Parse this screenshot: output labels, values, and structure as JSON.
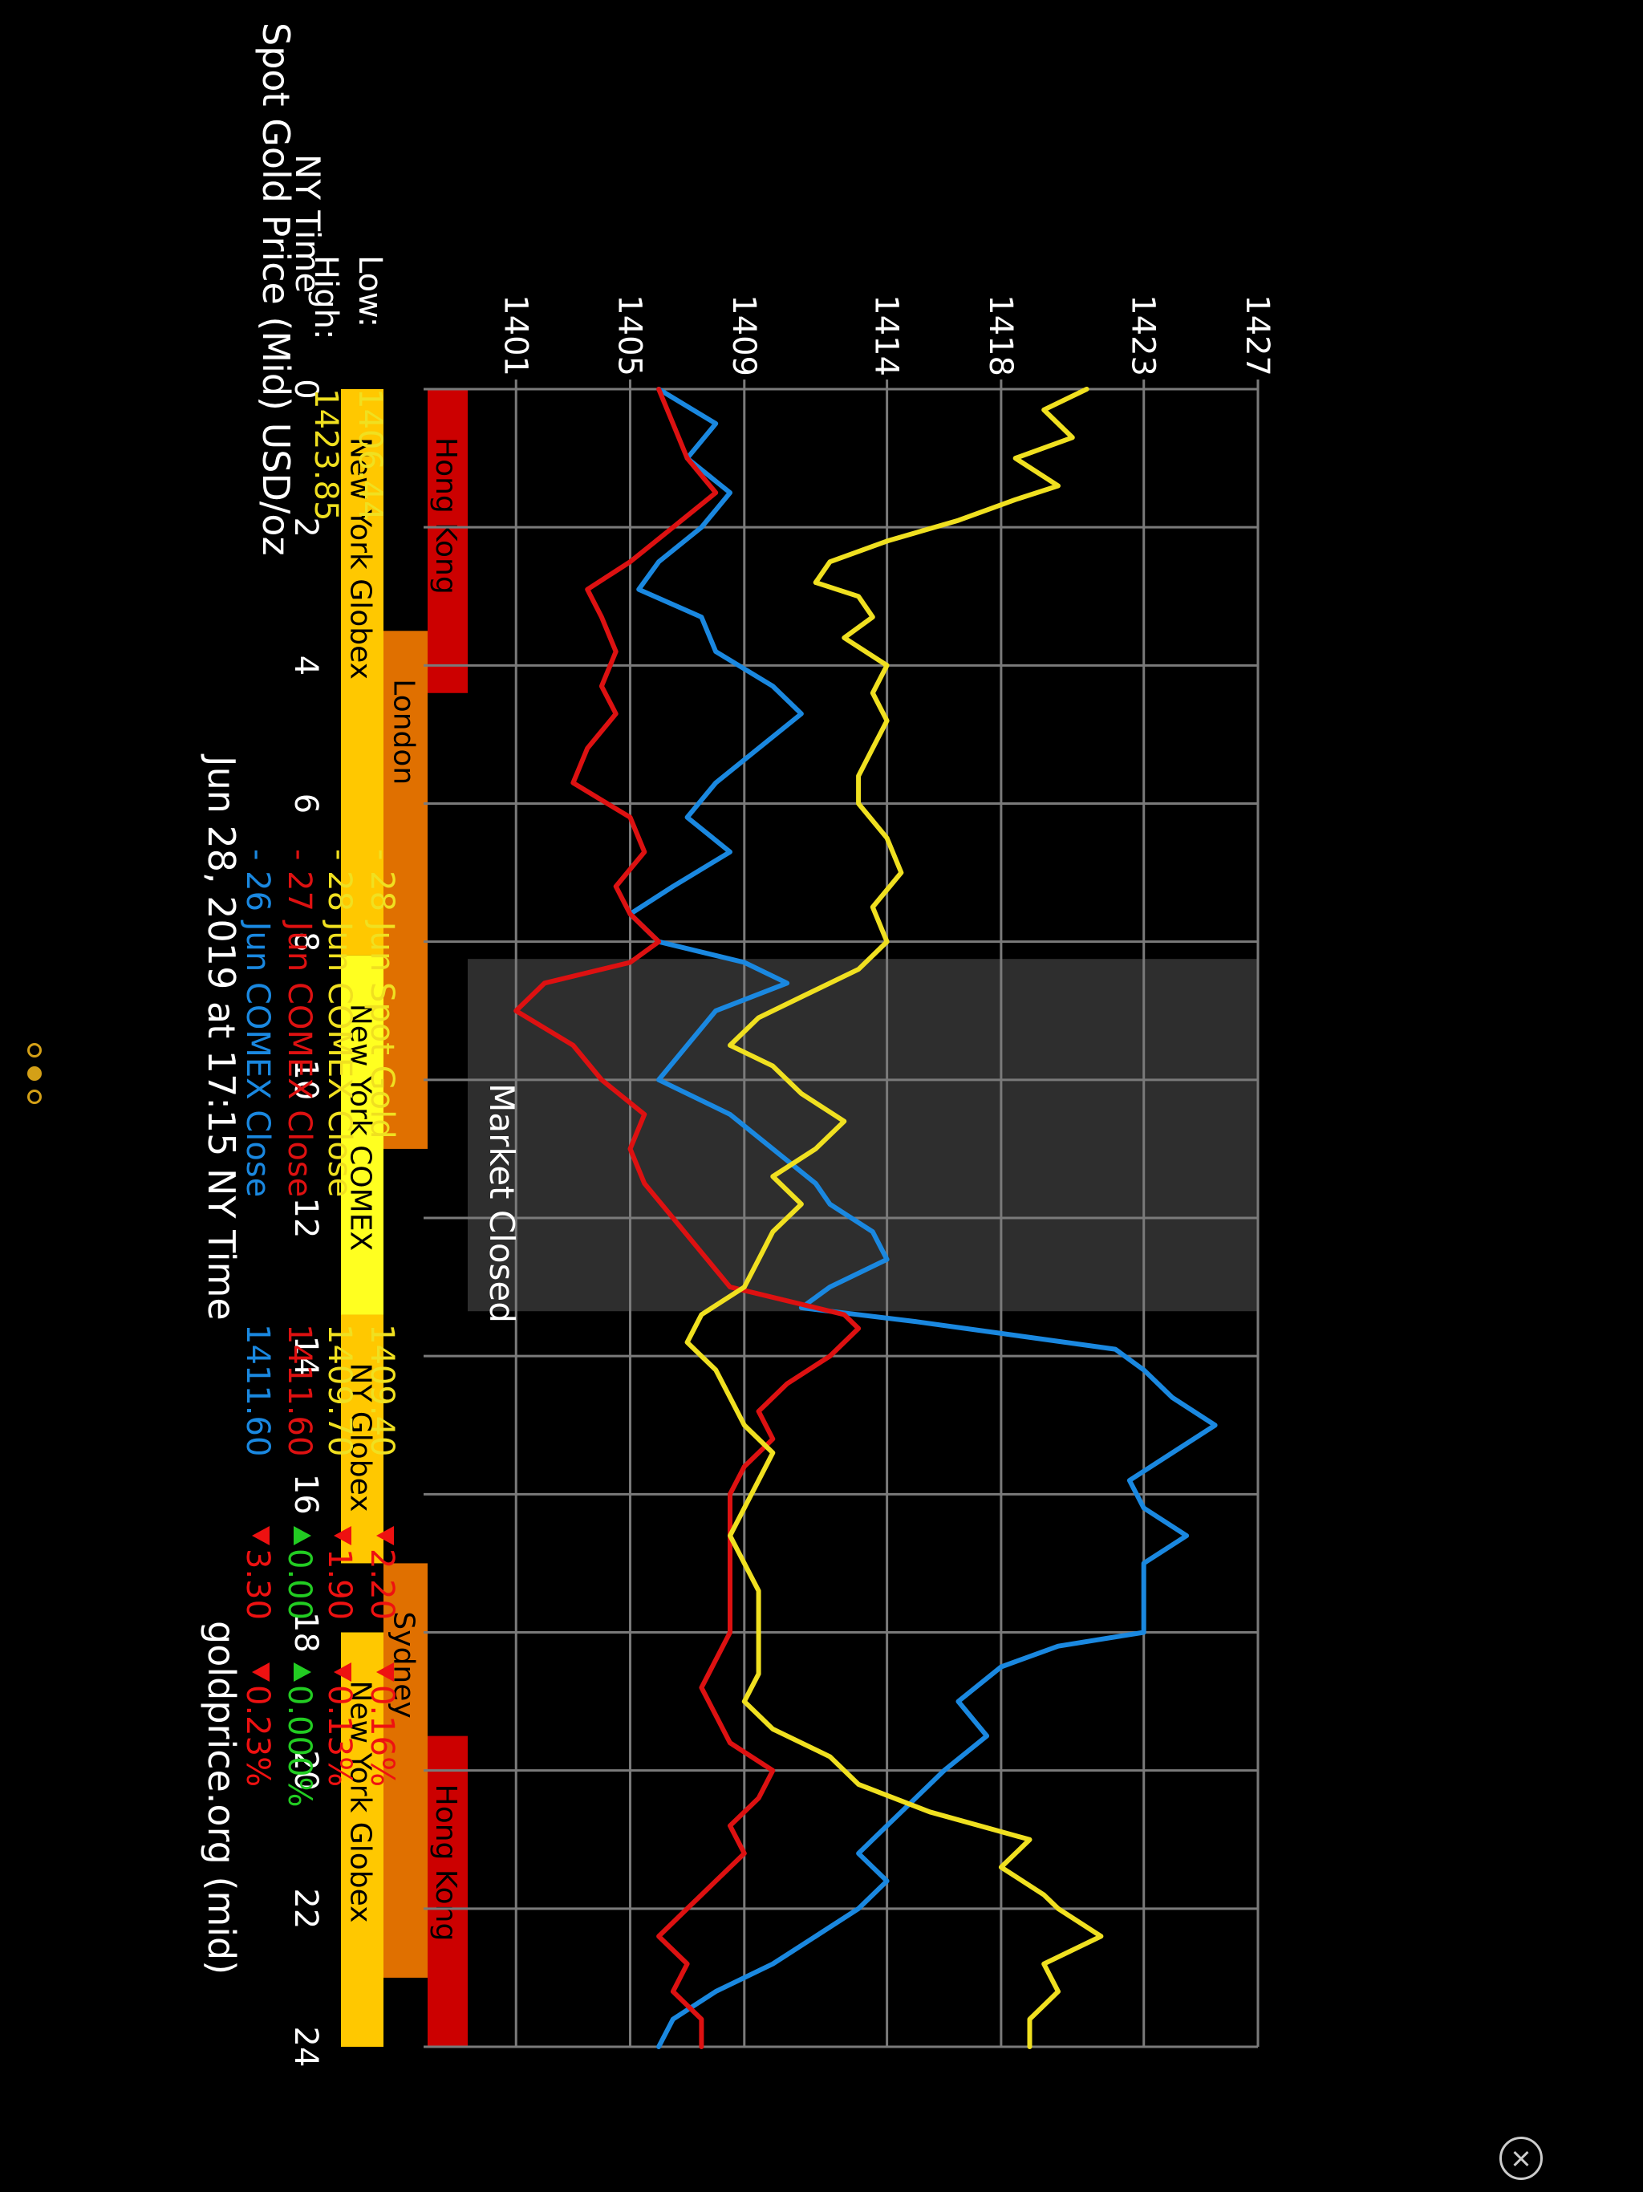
{
  "chart_data": {
    "type": "line",
    "title": "Spot Gold Price (Mid) USD/oz",
    "high_label": "High:",
    "high_value": "1423.85",
    "low_label": "Low:",
    "low_value": "1406.44",
    "xlabel": "NY Time",
    "xlim": [
      0,
      24
    ],
    "x_ticks": [
      "0",
      "2",
      "4",
      "6",
      "8",
      "10",
      "12",
      "14",
      "16",
      "18",
      "20",
      "22",
      "24"
    ],
    "ylim": [
      1397.76,
      1427
    ],
    "y_ticks": [
      "1401",
      "1405",
      "1409",
      "1414",
      "1418",
      "1423",
      "1427"
    ],
    "footer_date": "Jun 28, 2019 at 17:15 NY Time",
    "footer_source": "goldprice.org (mid)",
    "market_closed": {
      "label": "Market Closed",
      "x_range": [
        8.25,
        13.35
      ]
    },
    "legend": [
      {
        "label": "- 26 Jun COMEX Close",
        "value": "1411.60",
        "change": "3.30",
        "pct": "0.23%",
        "direction": "down",
        "color": "#1a88e0"
      },
      {
        "label": "- 27 Jun COMEX Close",
        "value": "1411.60",
        "change": "0.00",
        "pct": "0.000%",
        "direction": "up",
        "color": "#dd1111"
      },
      {
        "label": "- 28 Jun COMEX Close",
        "value": "1409.70",
        "change": "1.90",
        "pct": "0.13%",
        "direction": "down",
        "color": "#f0e020"
      },
      {
        "label": "- 28 Jun Spot Gold",
        "value": "1409.40",
        "change": "2.20",
        "pct": "0.16%",
        "direction": "down",
        "color": "#f0e020"
      }
    ],
    "series": [
      {
        "name": "26 Jun COMEX Close",
        "color": "#1a88e0",
        "x": [
          0,
          0.5,
          1,
          1.5,
          2,
          2.5,
          2.9,
          3.3,
          3.8,
          4.3,
          4.7,
          5.2,
          5.7,
          6.2,
          6.7,
          7.2,
          7.6,
          8.0,
          8.3,
          8.6,
          9.0,
          9.5,
          10.0,
          10.5,
          11.0,
          11.5,
          11.8,
          12.2,
          12.6,
          13.0,
          13.3,
          13.5,
          13.9,
          14.2,
          14.6,
          15.0,
          15.4,
          15.8,
          16.2,
          16.6,
          17.0,
          17.5,
          18.0,
          18.2,
          18.5,
          19.0,
          19.5,
          20.0,
          20.4,
          20.8,
          21.2,
          21.6,
          22.0,
          22.4,
          22.8,
          23.2,
          23.6,
          24.0
        ],
        "y": [
          1406.0,
          1408.0,
          1407.0,
          1408.5,
          1407.5,
          1406.0,
          1405.3,
          1407.5,
          1408.0,
          1410.0,
          1411.0,
          1409.5,
          1408.0,
          1407.0,
          1408.5,
          1406.5,
          1405.0,
          1406.0,
          1409.0,
          1410.5,
          1408.0,
          1407.0,
          1406.0,
          1408.5,
          1410.0,
          1411.5,
          1412.0,
          1413.5,
          1414.0,
          1412.0,
          1411.0,
          1415.0,
          1422.0,
          1423.0,
          1424.0,
          1425.5,
          1424.0,
          1422.5,
          1423.0,
          1424.5,
          1423.0,
          1423.0,
          1423.0,
          1420.0,
          1418.0,
          1416.5,
          1417.5,
          1416.0,
          1415.0,
          1414.0,
          1413.0,
          1414.0,
          1413.0,
          1411.5,
          1410.0,
          1408.0,
          1406.5,
          1406.0
        ]
      },
      {
        "name": "27 Jun COMEX Close",
        "color": "#dd1111",
        "x": [
          0,
          0.5,
          1,
          1.5,
          2,
          2.5,
          2.9,
          3.3,
          3.8,
          4.3,
          4.7,
          5.2,
          5.7,
          6.2,
          6.7,
          7.2,
          7.6,
          8.0,
          8.3,
          8.6,
          9.0,
          9.5,
          10.0,
          10.5,
          11.0,
          11.5,
          12.0,
          12.5,
          13.0,
          13.4,
          13.6,
          14.0,
          14.4,
          14.8,
          15.2,
          15.6,
          16.0,
          16.4,
          16.8,
          17.2,
          17.6,
          18.0,
          18.4,
          18.8,
          19.2,
          19.6,
          20.0,
          20.4,
          20.8,
          21.2,
          21.6,
          22.0,
          22.4,
          22.8,
          23.2,
          23.6,
          24.0
        ],
        "y": [
          1406.0,
          1406.5,
          1407.0,
          1408.0,
          1406.5,
          1405.0,
          1403.5,
          1404.0,
          1404.5,
          1404.0,
          1404.5,
          1403.5,
          1403.0,
          1405.0,
          1405.5,
          1404.5,
          1405.0,
          1406.0,
          1405.0,
          1402.0,
          1401.0,
          1403.0,
          1404.0,
          1405.5,
          1405.0,
          1405.5,
          1406.5,
          1407.5,
          1408.5,
          1412.5,
          1413.0,
          1412.0,
          1410.5,
          1409.5,
          1410.0,
          1409.0,
          1408.5,
          1408.5,
          1408.5,
          1408.5,
          1408.5,
          1408.5,
          1408.0,
          1407.5,
          1408.0,
          1408.5,
          1410.0,
          1409.5,
          1408.5,
          1409.0,
          1408.0,
          1407.0,
          1406.0,
          1407.0,
          1406.5,
          1407.5,
          1407.5
        ]
      },
      {
        "name": "28 Jun Spot Gold",
        "color": "#f0e020",
        "x": [
          0,
          0.3,
          0.7,
          1.0,
          1.4,
          1.6,
          1.9,
          2.2,
          2.5,
          2.8,
          3.0,
          3.3,
          3.6,
          4.0,
          4.4,
          4.8,
          5.2,
          5.6,
          6.0,
          6.5,
          7.0,
          7.5,
          8.0,
          8.4,
          8.8,
          9.1,
          9.5,
          9.8,
          10.2,
          10.6,
          11.0,
          11.4,
          11.8,
          12.2,
          12.6,
          13.0,
          13.4,
          13.8,
          14.2,
          14.6,
          15.0,
          15.4,
          15.8,
          16.2,
          16.6,
          17.0,
          17.4,
          17.8,
          18.2,
          18.6,
          19.0,
          19.4,
          19.8,
          20.2,
          20.6,
          21.0,
          21.4,
          21.8,
          22.0,
          22.4,
          22.8,
          23.2,
          23.6,
          24.0
        ],
        "y": [
          1421.0,
          1419.5,
          1420.5,
          1418.5,
          1420.0,
          1418.5,
          1416.5,
          1414.0,
          1412.0,
          1411.5,
          1413.0,
          1413.5,
          1412.5,
          1414.0,
          1413.5,
          1414.0,
          1413.5,
          1413.0,
          1413.0,
          1414.0,
          1414.5,
          1413.5,
          1414.0,
          1413.0,
          1411.0,
          1409.5,
          1408.5,
          1410.0,
          1411.0,
          1412.5,
          1411.5,
          1410.0,
          1411.0,
          1410.0,
          1409.5,
          1409.0,
          1407.5,
          1407.0,
          1408.0,
          1408.5,
          1409.0,
          1410.0,
          1409.5,
          1409.0,
          1408.5,
          1409.0,
          1409.5,
          1409.5,
          1409.5,
          1409.5,
          1409.0,
          1410.0,
          1412.0,
          1413.0,
          1415.5,
          1419.0,
          1418.0,
          1419.5,
          1420.0,
          1421.5,
          1419.5,
          1420.0,
          1419.0,
          1419.0
        ]
      }
    ],
    "sessions": [
      {
        "label": "Hong Kong",
        "start": 0,
        "end": 4.4,
        "lane": 0,
        "color": "#cc0000"
      },
      {
        "label": "Hong Kong",
        "start": 19.5,
        "end": 24,
        "lane": 0,
        "color": "#cc0000"
      },
      {
        "label": "London",
        "start": 3.5,
        "end": 11.0,
        "lane": 1,
        "color": "#e07000"
      },
      {
        "label": "Sydney",
        "start": 17.0,
        "end": 23.0,
        "lane": 1,
        "color": "#e07000"
      },
      {
        "label": "New York Globex",
        "start": 0,
        "end": 8.2,
        "lane": 2,
        "color": "#ffc800"
      },
      {
        "label": "New York COMEX",
        "start": 8.2,
        "end": 13.4,
        "lane": 2,
        "color": "#ffff20"
      },
      {
        "label": "NY Globex",
        "start": 13.4,
        "end": 17.0,
        "lane": 2,
        "color": "#ffc800"
      },
      {
        "label": "New York Globex",
        "start": 18.0,
        "end": 24,
        "lane": 2,
        "color": "#ffc800"
      }
    ]
  },
  "pager": {
    "count": 3,
    "active": 1
  }
}
